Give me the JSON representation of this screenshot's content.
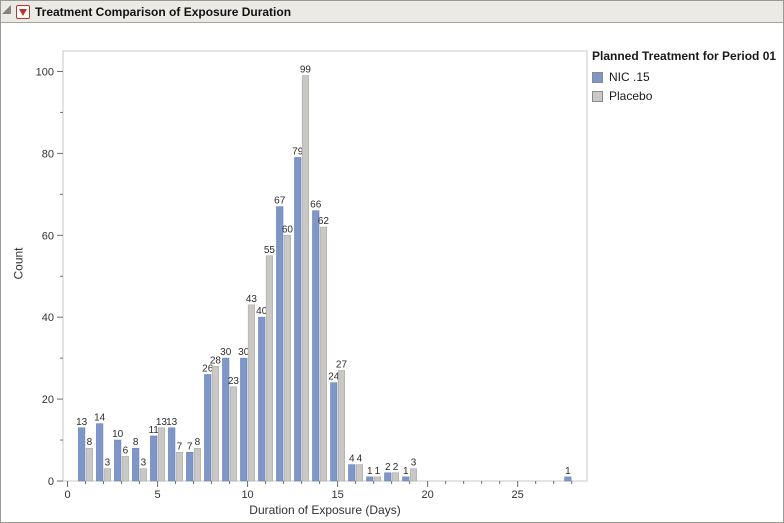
{
  "window": {
    "title": "Treatment Comparison of Exposure Duration"
  },
  "chart_data": {
    "type": "bar",
    "title": "Treatment Comparison of Exposure Duration",
    "xlabel": "Duration of Exposure (Days)",
    "ylabel": "Count",
    "xlim": [
      -0.25,
      28.85
    ],
    "ylim": [
      0,
      105
    ],
    "x_major_ticks": [
      0,
      5,
      10,
      15,
      20,
      25
    ],
    "x_minor_tick_step": 1,
    "y_major_ticks": [
      0,
      20,
      40,
      60,
      80,
      100
    ],
    "y_minor_tick_step": 10,
    "grid": false,
    "legend_position": "right",
    "legend_title": "Planned Treatment for Period 01",
    "categories": [
      1,
      2,
      3,
      4,
      5,
      6,
      7,
      8,
      9,
      10,
      11,
      12,
      13,
      14,
      15,
      16,
      17,
      18,
      19,
      28
    ],
    "series": [
      {
        "name": "NIC .15",
        "color": "#7e96c8",
        "border": "#6a83b5",
        "values": [
          13,
          14,
          10,
          8,
          11,
          13,
          7,
          26,
          30,
          30,
          40,
          67,
          79,
          66,
          24,
          4,
          1,
          2,
          1,
          1
        ]
      },
      {
        "name": "Placebo",
        "color": "#c9c8c5",
        "border": "#abaaa7",
        "values": [
          8,
          3,
          6,
          3,
          13,
          7,
          8,
          28,
          23,
          43,
          55,
          60,
          99,
          62,
          27,
          4,
          1,
          2,
          3,
          null
        ]
      }
    ],
    "bar_labels_visible": true,
    "label_color": "#2d2d2d"
  },
  "colors": {
    "titlebar_bg": "#eceae4",
    "titlebar_border": "#a8a49a",
    "red_triangle": "#b8372b",
    "plot_frame": "#c8c8c8",
    "tick": "#6e6e6e",
    "axis_text": "#323232"
  }
}
